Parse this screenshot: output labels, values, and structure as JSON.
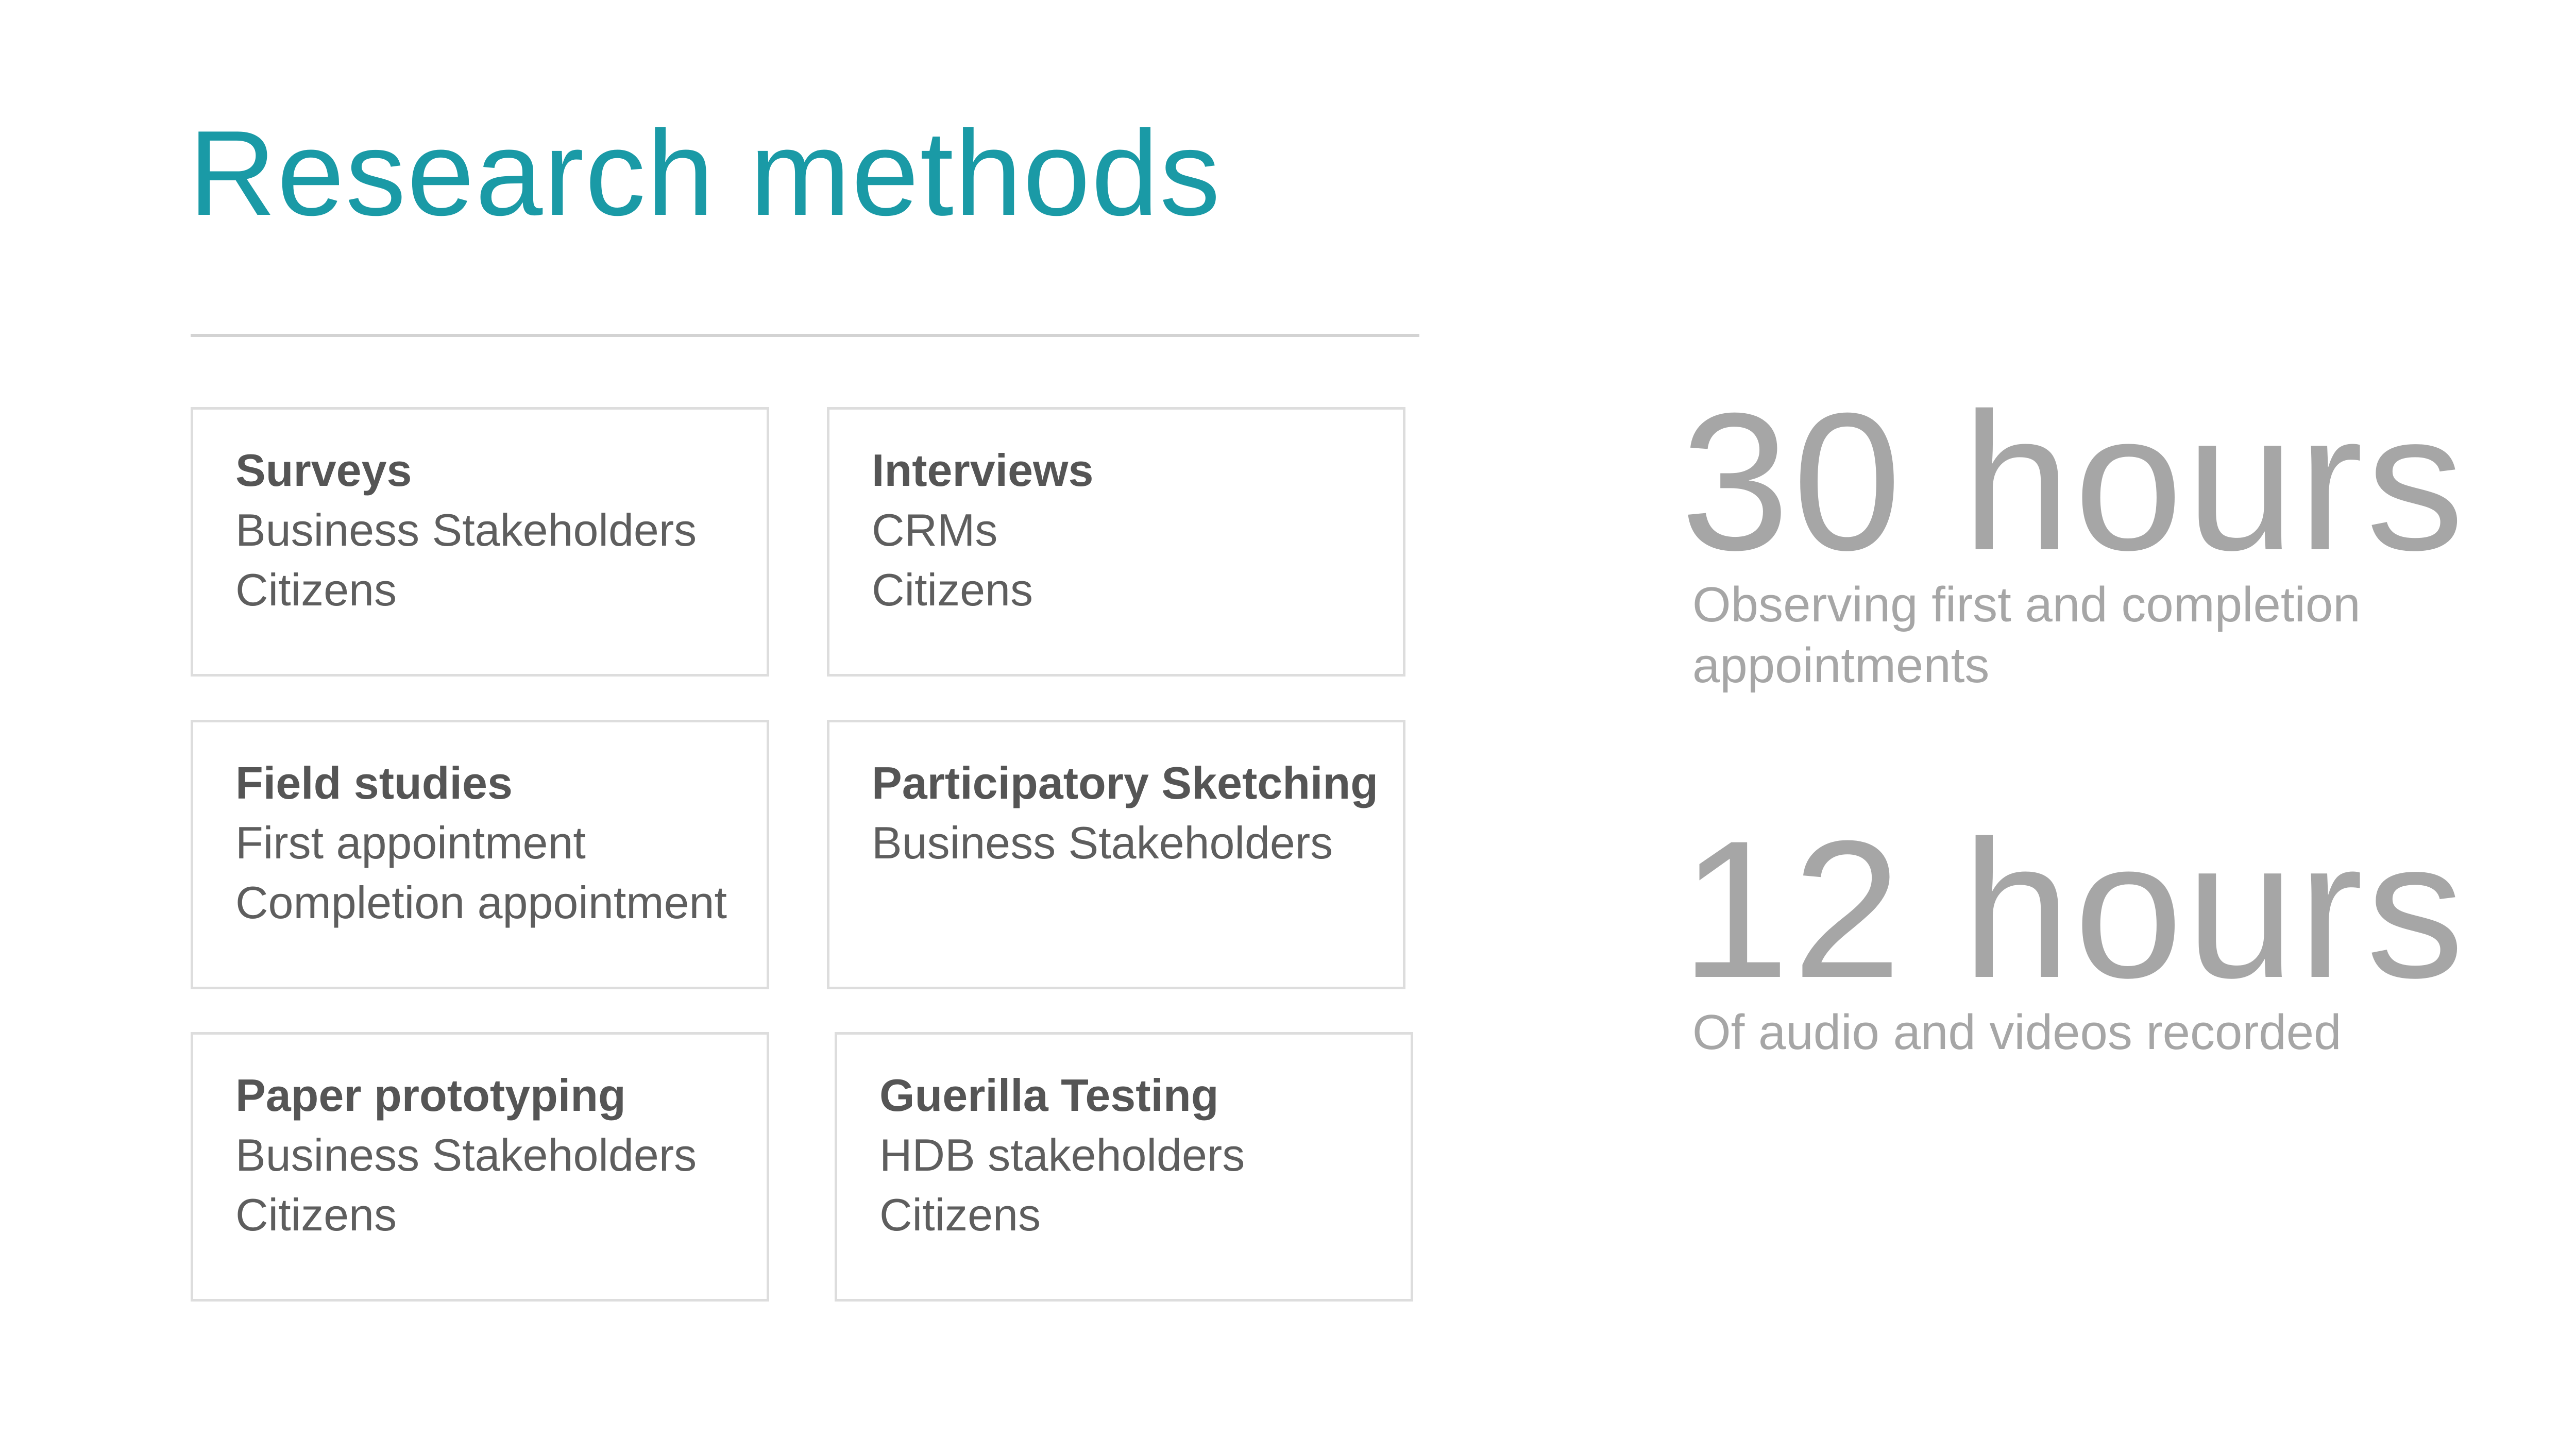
{
  "header": {
    "title": "Research methods"
  },
  "methods": [
    {
      "title": "Surveys",
      "lines": [
        "Business Stakeholders",
        "Citizens"
      ]
    },
    {
      "title": "Interviews",
      "lines": [
        "CRMs",
        "Citizens"
      ]
    },
    {
      "title": "Field studies",
      "lines": [
        "First appointment",
        "Completion appointment"
      ]
    },
    {
      "title": "Participatory Sketching",
      "lines": [
        "Business Stakeholders"
      ]
    },
    {
      "title": "Paper prototyping",
      "lines": [
        "Business Stakeholders",
        "Citizens"
      ]
    },
    {
      "title": "Guerilla Testing",
      "lines": [
        "HDB stakeholders",
        "Citizens"
      ]
    }
  ],
  "stats": [
    {
      "value": "30 hours",
      "caption_line1": "Observing first and completion",
      "caption_line2": "appointments"
    },
    {
      "value": "12 hours",
      "caption_line1": "Of audio and videos recorded",
      "caption_line2": ""
    }
  ],
  "colors": {
    "accent": "#1a9aa6",
    "text": "#555555",
    "muted": "#a6a6a6",
    "border": "#dddddd"
  }
}
